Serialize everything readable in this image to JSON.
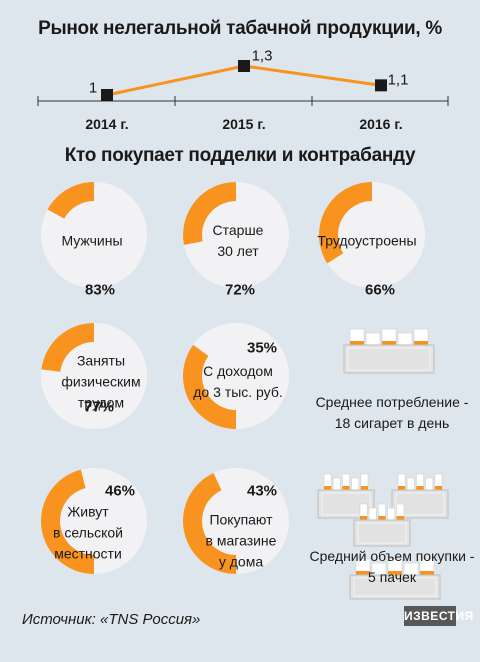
{
  "titles": {
    "main": "Рынок нелегальной табачной продукции, %",
    "section": "Кто покупает подделки и контрабанду"
  },
  "colors": {
    "background": "#dde6ec",
    "accent": "#f7931e",
    "track": "#f2f2f4",
    "marker": "#1a1a1a"
  },
  "chart_data": [
    {
      "type": "line",
      "title": "Рынок нелегальной табачной продукции, %",
      "categories": [
        "2014 г.",
        "2015 г.",
        "2016 г."
      ],
      "values": [
        1,
        1.3,
        1.1
      ],
      "value_labels": [
        "1",
        "1,3",
        "1,1"
      ],
      "ylim": [
        0.7,
        1.5
      ],
      "grid": false
    },
    {
      "type": "pie",
      "title": "Кто покупает подделки и контрабанду",
      "donuts": [
        {
          "label": "Мужчины",
          "percent": 83,
          "percent_label": "83%"
        },
        {
          "label": "Старше 30 лет",
          "percent": 72,
          "percent_label": "72%"
        },
        {
          "label": "Трудоустроены",
          "percent": 66,
          "percent_label": "66%"
        },
        {
          "label": "Заняты физическим трудом",
          "percent": 77,
          "percent_label": "77%"
        },
        {
          "label": "С доходом до 3 тыс. руб.",
          "percent": 35,
          "percent_label": "35%"
        },
        {
          "label": "Живут в сельской местности",
          "percent": 46,
          "percent_label": "46%"
        },
        {
          "label": "Покупают в магазине у дома",
          "percent": 43,
          "percent_label": "43%"
        }
      ]
    }
  ],
  "side_facts": [
    {
      "text": "Среднее потребление - 18 сигарет в день"
    },
    {
      "text": "Средний объем покупки - 5 пачек"
    }
  ],
  "source": "Источник: «TNS Россия»",
  "logo_text": "ИЗВЕСТИЯ"
}
